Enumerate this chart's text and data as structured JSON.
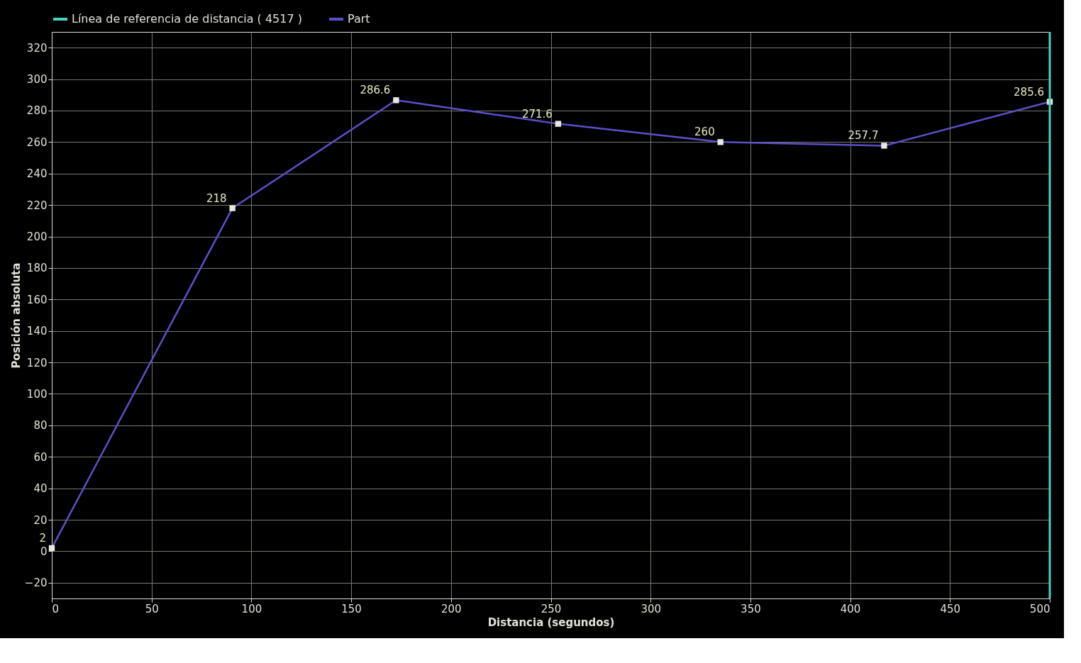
{
  "chart_data": {
    "type": "line",
    "xlabel": "Distancia (segundos)",
    "ylabel": "Posición absoluta",
    "xlim": [
      0,
      500
    ],
    "xticks": [
      0,
      50,
      100,
      150,
      200,
      250,
      300,
      350,
      400,
      450,
      500
    ],
    "ylim": [
      -30,
      330
    ],
    "yticks": [
      -20,
      0,
      20,
      40,
      60,
      80,
      100,
      120,
      140,
      160,
      180,
      200,
      220,
      240,
      260,
      280,
      300,
      320
    ],
    "ref_lines": [
      {
        "axis": "x",
        "value": 500,
        "label": "Línea de referencia de distancia ( 4517 )",
        "color": "#40d8c0"
      }
    ],
    "grid": true,
    "legend": "top left",
    "marker": "square",
    "line_style": "solid",
    "series": [
      {
        "name": "Part",
        "color": "#5a50c8",
        "x": [
          0,
          90.5,
          172.5,
          253.7,
          335,
          417,
          500
        ],
        "values": [
          2,
          218,
          286.6,
          271.6,
          260,
          257.7,
          285.6
        ],
        "data_labels": true
      }
    ]
  }
}
